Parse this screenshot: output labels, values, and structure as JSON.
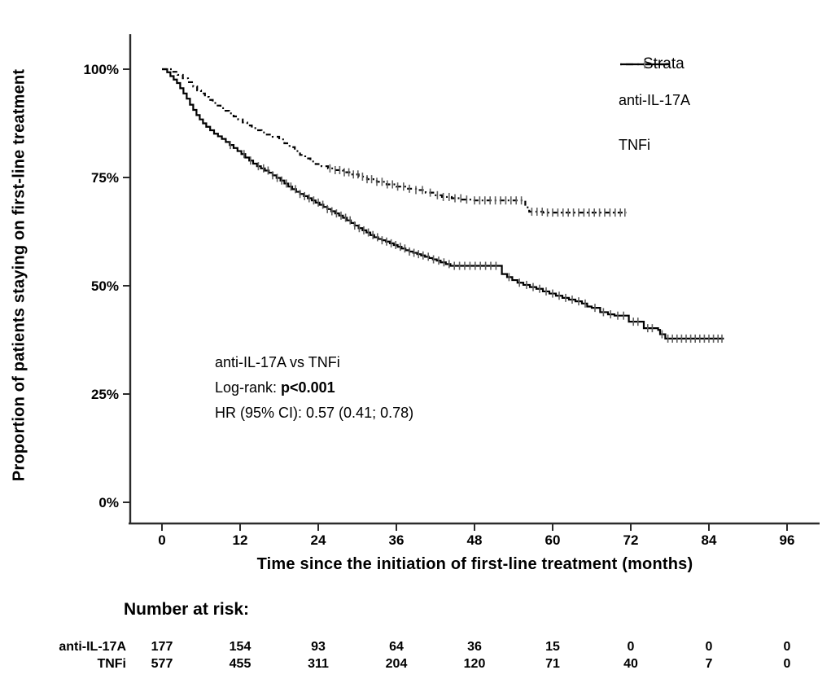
{
  "chart_data": {
    "type": "line",
    "subtype": "kaplan-meier-step-curves",
    "title": "",
    "xlabel": "Time since the initiation of first-line treatment (months)",
    "ylabel": "Proportion of patients staying on first-line treatment",
    "xlim": [
      0,
      96
    ],
    "ylim": [
      0,
      100
    ],
    "x_ticks": [
      0,
      12,
      24,
      36,
      48,
      60,
      72,
      84,
      96
    ],
    "y_ticks": [
      {
        "value": 100,
        "label": "100%"
      },
      {
        "value": 75,
        "label": "75%"
      },
      {
        "value": 50,
        "label": "50%"
      },
      {
        "value": 25,
        "label": "25%"
      },
      {
        "value": 0,
        "label": "0%"
      }
    ],
    "grid": false,
    "legend_position": "top-right",
    "series": [
      {
        "name": "anti-IL-17A",
        "line_style": "dashdot",
        "color": "#000000",
        "steps": [
          [
            0,
            100
          ],
          [
            1.6,
            99.4
          ],
          [
            2.4,
            98.7
          ],
          [
            3.2,
            97.9
          ],
          [
            4,
            97
          ],
          [
            4.8,
            96
          ],
          [
            5.4,
            95.1
          ],
          [
            6,
            94.4
          ],
          [
            6.6,
            93.6
          ],
          [
            7.2,
            92.9
          ],
          [
            7.8,
            92.2
          ],
          [
            8.4,
            91.6
          ],
          [
            9,
            91
          ],
          [
            9.6,
            90.4
          ],
          [
            10.3,
            89.8
          ],
          [
            11,
            89.1
          ],
          [
            11.7,
            88.4
          ],
          [
            12.4,
            87.7
          ],
          [
            13.1,
            87
          ],
          [
            13.8,
            86.4
          ],
          [
            14.5,
            85.9
          ],
          [
            15.3,
            85.4
          ],
          [
            16.1,
            84.9
          ],
          [
            17,
            84.4
          ],
          [
            18,
            83.8
          ],
          [
            18.8,
            82.9
          ],
          [
            19.6,
            82
          ],
          [
            20.4,
            81.1
          ],
          [
            21.2,
            80.2
          ],
          [
            22,
            79.4
          ],
          [
            22.8,
            78.7
          ],
          [
            23.6,
            78.1
          ],
          [
            24.5,
            77.6
          ],
          [
            25.5,
            77.1
          ],
          [
            26.5,
            76.7
          ],
          [
            27.8,
            76.2
          ],
          [
            29,
            75.7
          ],
          [
            30.2,
            75.2
          ],
          [
            31.5,
            74.6
          ],
          [
            33,
            74
          ],
          [
            34.5,
            73.4
          ],
          [
            36,
            72.9
          ],
          [
            37.5,
            72.4
          ],
          [
            39,
            72.1
          ],
          [
            40.5,
            71.5
          ],
          [
            41.8,
            70.9
          ],
          [
            43,
            70.5
          ],
          [
            44.5,
            70.2
          ],
          [
            46,
            69.9
          ],
          [
            47.5,
            69.7
          ],
          [
            55.8,
            68.1
          ],
          [
            56.4,
            67.1
          ],
          [
            58.5,
            66.9
          ],
          [
            71.3,
            66.9
          ]
        ],
        "censor_months": [
          25.8,
          26.6,
          27.3,
          28,
          28.7,
          29.4,
          30.1,
          30.8,
          31.5,
          32.2,
          33,
          33.8,
          34.6,
          35.4,
          36.2,
          37.1,
          38,
          39,
          40,
          41.2,
          42.3,
          43.2,
          44.1,
          45,
          45.9,
          46.8,
          48,
          48.8,
          49.6,
          50.4,
          51.2,
          52,
          52.8,
          53.6,
          54.4,
          55.2,
          56.8,
          57.6,
          58.4,
          59.2,
          60,
          60.8,
          61.6,
          62.4,
          63.2,
          64,
          64.8,
          65.6,
          66.4,
          67.2,
          68,
          68.8,
          69.6,
          70.4,
          71.1
        ]
      },
      {
        "name": "TNFi",
        "line_style": "solid",
        "color": "#000000",
        "steps": [
          [
            0,
            100
          ],
          [
            0.8,
            99.3
          ],
          [
            1.3,
            98.4
          ],
          [
            1.8,
            97.6
          ],
          [
            2.3,
            96.8
          ],
          [
            2.8,
            95.6
          ],
          [
            3.3,
            94.4
          ],
          [
            3.8,
            93.2
          ],
          [
            4.3,
            91.8
          ],
          [
            4.8,
            90.6
          ],
          [
            5.3,
            89.4
          ],
          [
            5.8,
            88.4
          ],
          [
            6.3,
            87.5
          ],
          [
            6.8,
            86.7
          ],
          [
            7.4,
            85.9
          ],
          [
            8,
            85.1
          ],
          [
            8.6,
            84.5
          ],
          [
            9.2,
            83.9
          ],
          [
            9.8,
            83.2
          ],
          [
            10.4,
            82.5
          ],
          [
            11,
            81.8
          ],
          [
            11.6,
            81.1
          ],
          [
            12.2,
            80.4
          ],
          [
            12.8,
            79.6
          ],
          [
            13.4,
            78.9
          ],
          [
            14,
            78.2
          ],
          [
            14.6,
            77.6
          ],
          [
            15.2,
            77.1
          ],
          [
            15.8,
            76.6
          ],
          [
            16.4,
            76.1
          ],
          [
            17,
            75.5
          ],
          [
            17.6,
            74.9
          ],
          [
            18.2,
            74.3
          ],
          [
            18.8,
            73.6
          ],
          [
            19.4,
            72.9
          ],
          [
            20,
            72.3
          ],
          [
            20.6,
            71.7
          ],
          [
            21.2,
            71.2
          ],
          [
            21.8,
            70.7
          ],
          [
            22.4,
            70.2
          ],
          [
            23,
            69.7
          ],
          [
            23.6,
            69.2
          ],
          [
            24.2,
            68.7
          ],
          [
            24.8,
            68.2
          ],
          [
            25.4,
            67.7
          ],
          [
            26,
            67.2
          ],
          [
            26.6,
            66.7
          ],
          [
            27.2,
            66.2
          ],
          [
            27.8,
            65.7
          ],
          [
            28.4,
            65.1
          ],
          [
            29,
            64.5
          ],
          [
            29.6,
            63.9
          ],
          [
            30.2,
            63.3
          ],
          [
            30.8,
            62.8
          ],
          [
            31.4,
            62.3
          ],
          [
            32,
            61.7
          ],
          [
            32.6,
            61.2
          ],
          [
            33.2,
            60.8
          ],
          [
            33.8,
            60.5
          ],
          [
            34.4,
            60.2
          ],
          [
            35,
            59.8
          ],
          [
            35.6,
            59.4
          ],
          [
            36.2,
            59
          ],
          [
            36.8,
            58.6
          ],
          [
            37.4,
            58.2
          ],
          [
            38,
            57.9
          ],
          [
            38.6,
            57.6
          ],
          [
            39.2,
            57.3
          ],
          [
            39.8,
            57
          ],
          [
            40.4,
            56.7
          ],
          [
            41,
            56.4
          ],
          [
            41.6,
            56.1
          ],
          [
            42.2,
            55.8
          ],
          [
            42.8,
            55.4
          ],
          [
            43.6,
            55
          ],
          [
            44.3,
            54.6
          ],
          [
            52.2,
            52.7
          ],
          [
            53,
            52
          ],
          [
            53.8,
            51.3
          ],
          [
            54.6,
            50.7
          ],
          [
            55.5,
            50.2
          ],
          [
            56.5,
            49.7
          ],
          [
            57.5,
            49.3
          ],
          [
            58.5,
            48.7
          ],
          [
            59.5,
            48.2
          ],
          [
            60.5,
            47.7
          ],
          [
            61.5,
            47.2
          ],
          [
            62.5,
            46.8
          ],
          [
            63.5,
            46.4
          ],
          [
            64.5,
            45.9
          ],
          [
            65.3,
            45.2
          ],
          [
            66,
            44.9
          ],
          [
            67.3,
            43.9
          ],
          [
            68.5,
            43.4
          ],
          [
            69.5,
            43.1
          ],
          [
            71.7,
            41.7
          ],
          [
            74,
            40.2
          ],
          [
            76.2,
            39.8
          ],
          [
            76.5,
            38.8
          ],
          [
            77.3,
            37.8
          ],
          [
            86.3,
            37.8
          ]
        ],
        "censor_months": [
          10.5,
          12.6,
          13.6,
          14.8,
          15.6,
          16.3,
          17,
          17.7,
          18.4,
          19.1,
          19.8,
          20.5,
          21.2,
          21.9,
          22.6,
          23.3,
          24,
          24.7,
          25.4,
          26.1,
          26.8,
          27.5,
          28.2,
          28.9,
          29.6,
          30.3,
          31,
          31.7,
          32.4,
          33.1,
          33.8,
          34.5,
          35.2,
          35.9,
          36.6,
          37.3,
          38,
          38.7,
          39.4,
          40.1,
          40.9,
          41.7,
          42.5,
          43.3,
          44.1,
          44.9,
          45.7,
          46.5,
          47.3,
          48.1,
          48.9,
          49.7,
          50.5,
          51.3,
          53.3,
          54.9,
          56,
          57,
          58,
          59,
          60,
          61,
          62,
          63,
          64,
          65,
          66.5,
          67.8,
          68.9,
          70,
          70.9,
          72.4,
          73.1,
          74.6,
          75.3,
          76.8,
          77.7,
          78.4,
          79.1,
          79.8,
          80.5,
          81.2,
          81.9,
          82.6,
          83.3,
          84,
          84.7,
          85.4,
          86
        ],
        "legend_marker": "plus"
      }
    ],
    "annotation": {
      "line1": "anti-IL-17A vs TNFi",
      "logrank_prefix": "Log-rank: ",
      "logrank_value": "p<0.001",
      "hr_line": "HR (95% CI): 0.57 (0.41; 0.78)"
    },
    "risk_table": {
      "title": "Number at risk:",
      "times": [
        0,
        12,
        24,
        36,
        48,
        60,
        72,
        84,
        96
      ],
      "rows": [
        {
          "label": "anti-IL-17A",
          "counts": [
            177,
            154,
            93,
            64,
            36,
            15,
            0,
            0,
            0
          ]
        },
        {
          "label": "TNFi",
          "counts": [
            577,
            455,
            311,
            204,
            120,
            71,
            40,
            7,
            0
          ]
        }
      ]
    }
  },
  "legend": {
    "title": "Strata"
  },
  "colors": {
    "curve": "#000000",
    "censor_tick": "#5f5f5f",
    "axis": "#2b2b2b",
    "text": "#000000"
  }
}
